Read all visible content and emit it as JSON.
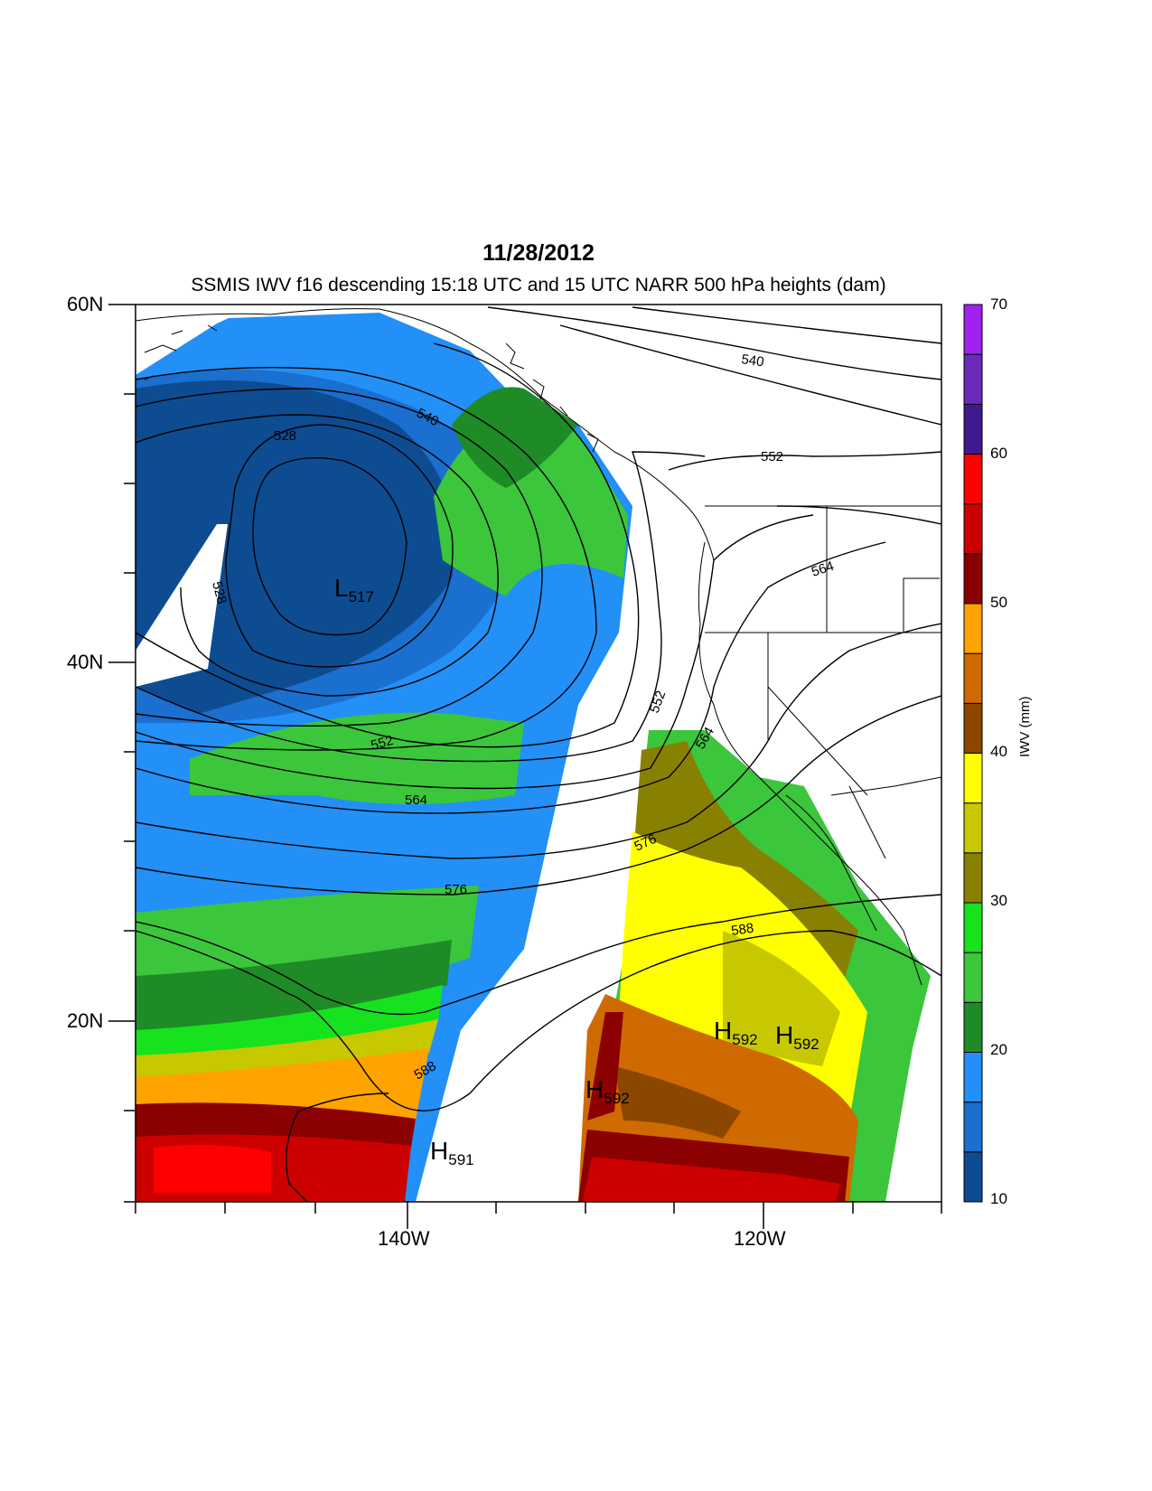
{
  "title": "11/28/2012",
  "subtitle": "SSMIS IWV f16 descending 15:18 UTC and 15 UTC NARR 500 hPa heights (dam)",
  "lat_labels": [
    "60N",
    "40N",
    "20N"
  ],
  "lon_labels": [
    "140W",
    "120W"
  ],
  "colorbar": {
    "title": "IWV (mm)",
    "tick_labels": [
      "10",
      "20",
      "30",
      "40",
      "50",
      "60",
      "70"
    ],
    "colors": [
      "#0e4c92",
      "#1a6fcf",
      "#2290f6",
      "#1e8b27",
      "#3cc63c",
      "#16e21e",
      "#888000",
      "#c8c800",
      "#ffff00",
      "#8b4700",
      "#cf6a00",
      "#ffa300",
      "#8b0000",
      "#cd0000",
      "#ff0000",
      "#3f1a8f",
      "#6b2ab9",
      "#a020f0"
    ]
  },
  "contour_labels": [
    "540",
    "528",
    "552",
    "564",
    "540",
    "552",
    "564",
    "576",
    "576",
    "588",
    "588",
    "528",
    "552",
    "564"
  ],
  "pressure_centers": [
    {
      "type": "L",
      "value": "517"
    },
    {
      "type": "H",
      "value": "591"
    },
    {
      "type": "H",
      "value": "592"
    },
    {
      "type": "H",
      "value": "592"
    },
    {
      "type": "H",
      "value": "592"
    }
  ]
}
